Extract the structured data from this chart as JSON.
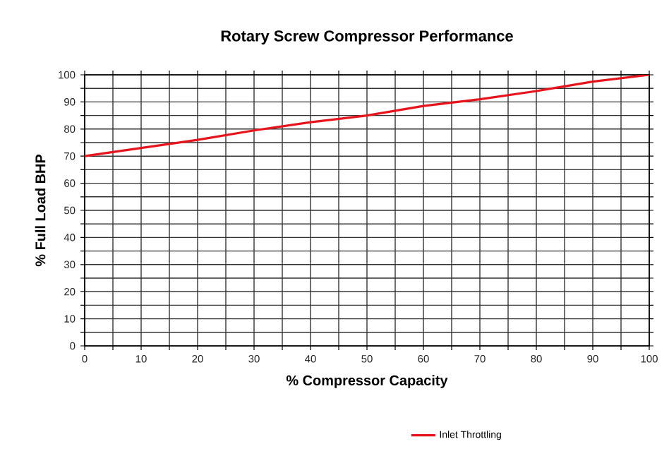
{
  "chart_data": {
    "type": "line",
    "title": "Rotary Screw Compressor Performance",
    "xlabel": "% Compressor Capacity",
    "ylabel": "% Full Load BHP",
    "x": [
      0,
      10,
      20,
      30,
      40,
      50,
      60,
      70,
      80,
      90,
      100
    ],
    "series": [
      {
        "name": "Inlet Throttling",
        "color": "#e8141c",
        "values": [
          70,
          73,
          76,
          79.5,
          82.5,
          85,
          88.5,
          91,
          94,
          97.5,
          100
        ]
      }
    ],
    "xlim": [
      0,
      100
    ],
    "ylim": [
      0,
      100
    ],
    "xticks": [
      0,
      {
        "value": 5,
        "label": null
      },
      10,
      {
        "value": 15,
        "label": null
      },
      20,
      {
        "value": 25,
        "label": null
      },
      30,
      {
        "value": 35,
        "label": null
      },
      40,
      {
        "value": 45,
        "label": null
      },
      50,
      {
        "value": 55,
        "label": null
      },
      60,
      {
        "value": 65,
        "label": null
      },
      70,
      {
        "value": 75,
        "label": null
      },
      80,
      {
        "value": 85,
        "label": null
      },
      90,
      {
        "value": 95,
        "label": null
      },
      100
    ],
    "yticks": [
      0,
      {
        "value": 5,
        "label": null
      },
      10,
      {
        "value": 15,
        "label": null
      },
      20,
      {
        "value": 25,
        "label": null
      },
      30,
      {
        "value": 35,
        "label": null
      },
      40,
      {
        "value": 45,
        "label": null
      },
      50,
      {
        "value": 55,
        "label": null
      },
      60,
      {
        "value": 65,
        "label": null
      },
      70,
      {
        "value": 75,
        "label": null
      },
      80,
      {
        "value": 85,
        "label": null
      },
      90,
      {
        "value": 95,
        "label": null
      },
      100
    ],
    "grid": true,
    "legend": "bottom",
    "marker": "none",
    "line_style": "solid"
  }
}
